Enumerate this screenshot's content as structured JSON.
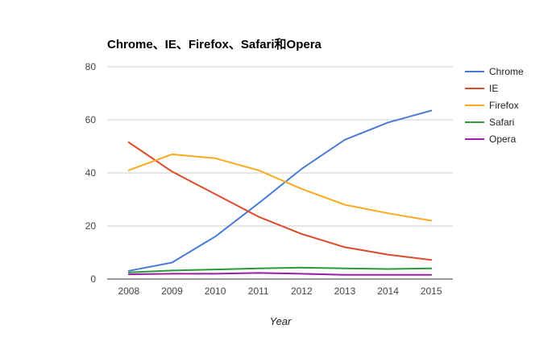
{
  "chart_data": {
    "type": "line",
    "title": "Chrome、IE、Firefox、Safari和Opera",
    "xlabel": "Year",
    "ylabel": "",
    "x": [
      "2008",
      "2009",
      "2010",
      "2011",
      "2012",
      "2013",
      "2014",
      "2015"
    ],
    "ylim": [
      0,
      80
    ],
    "yticks": [
      "0",
      "20",
      "40",
      "60",
      "80"
    ],
    "grid": true,
    "legend": "right",
    "series": [
      {
        "name": "Chrome",
        "color": "#4a7bd6",
        "values": [
          3.1,
          6.2,
          16.0,
          28.5,
          41.5,
          52.5,
          59.0,
          63.5
        ]
      },
      {
        "name": "IE",
        "color": "#dc4a2a",
        "values": [
          51.5,
          40.5,
          32.0,
          23.5,
          17.0,
          12.0,
          9.2,
          7.2
        ]
      },
      {
        "name": "Firefox",
        "color": "#fbaa20",
        "values": [
          41.0,
          47.0,
          45.5,
          41.0,
          34.0,
          28.0,
          24.8,
          22.0
        ]
      },
      {
        "name": "Safari",
        "color": "#2a9a3a",
        "values": [
          2.5,
          3.2,
          3.6,
          4.0,
          4.3,
          4.0,
          3.8,
          4.0
        ]
      },
      {
        "name": "Opera",
        "color": "#9b1fa4",
        "values": [
          1.8,
          2.0,
          2.0,
          2.3,
          2.0,
          1.6,
          1.6,
          1.6
        ]
      }
    ]
  }
}
